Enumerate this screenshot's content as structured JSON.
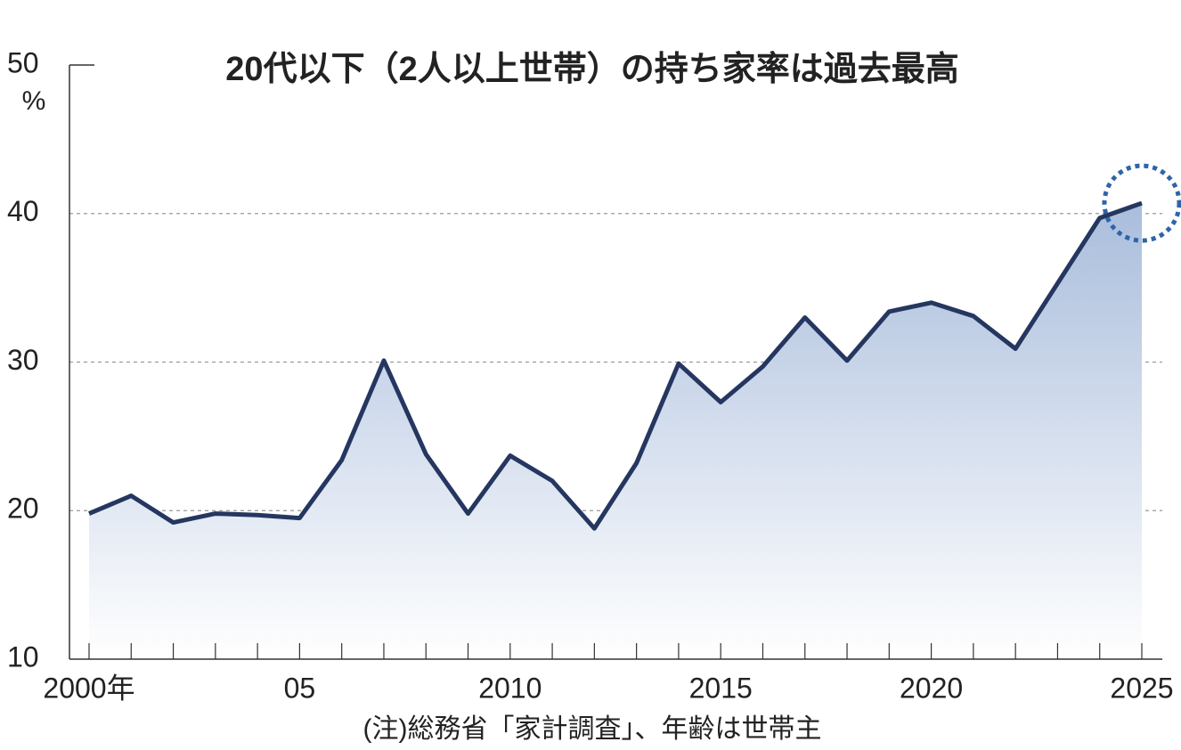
{
  "chart_data": {
    "type": "line",
    "title": "20代以下（2人以上世帯）の持ち家率は過去最高",
    "y_unit": "%",
    "note": "(注)総務省「家計調査」、年齢は世帯主",
    "x": [
      2000,
      2001,
      2002,
      2003,
      2004,
      2005,
      2006,
      2007,
      2008,
      2009,
      2010,
      2011,
      2012,
      2013,
      2014,
      2015,
      2016,
      2017,
      2018,
      2019,
      2020,
      2021,
      2022,
      2023,
      2024,
      2025
    ],
    "series": [
      {
        "name": "持ち家率",
        "color": "#253760",
        "values": [
          19.8,
          21.0,
          19.2,
          19.8,
          19.7,
          19.5,
          23.4,
          30.1,
          23.8,
          19.8,
          23.7,
          22.0,
          18.8,
          23.2,
          29.9,
          27.3,
          29.7,
          33.0,
          30.1,
          33.4,
          34.0,
          33.1,
          30.9,
          35.3,
          39.7,
          40.7
        ]
      }
    ],
    "xlim": [
      2000,
      2025
    ],
    "xticks": [
      {
        "value": 2000,
        "label": "2000年"
      },
      {
        "value": 2005,
        "label": "05"
      },
      2010,
      2015,
      2020,
      2025
    ],
    "ylim": [
      10,
      50
    ],
    "yticks": [
      10,
      20,
      30,
      40,
      50
    ],
    "grid": true,
    "highlight_color": "#2f64a8"
  }
}
